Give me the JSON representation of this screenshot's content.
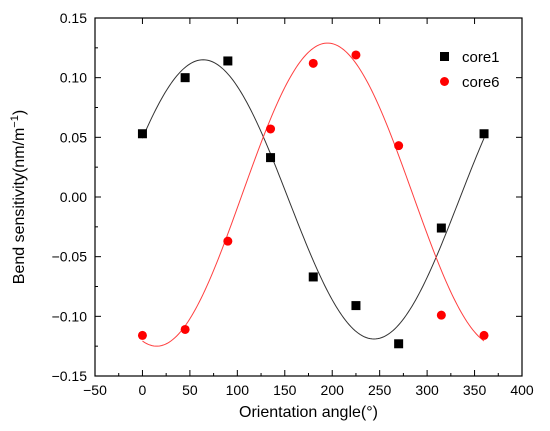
{
  "chart_data": {
    "type": "scatter",
    "xlabel": "Orientation angle(°)",
    "ylabel_main": "Bend sensitivity(nm/m",
    "ylabel_sup": "−1",
    "ylabel_end": ")",
    "xlim": [
      -50,
      400
    ],
    "ylim": [
      -0.15,
      0.15
    ],
    "xticks": [
      -50,
      0,
      50,
      100,
      150,
      200,
      250,
      300,
      350,
      400
    ],
    "xtick_labels": [
      "−50",
      "0",
      "50",
      "100",
      "150",
      "200",
      "250",
      "300",
      "350",
      "400"
    ],
    "yticks": [
      -0.15,
      -0.1,
      -0.05,
      0.0,
      0.05,
      0.1,
      0.15
    ],
    "ytick_labels": [
      "−0.15",
      "−0.10",
      "−0.05",
      "0.00",
      "0.05",
      "0.10",
      "0.15"
    ],
    "grid": false,
    "legend_position": "top-right",
    "series": [
      {
        "name": "core1",
        "marker": "square",
        "color": "#000000",
        "line_color": "#333333",
        "x": [
          0,
          45,
          90,
          135,
          180,
          225,
          270,
          315,
          360
        ],
        "y": [
          0.053,
          0.1,
          0.114,
          0.033,
          -0.067,
          -0.091,
          -0.123,
          -0.026,
          0.053
        ],
        "fit": {
          "mean": -0.002,
          "amp": 0.117,
          "phase_deg": 64,
          "x_range": [
            0,
            360
          ]
        }
      },
      {
        "name": "core6",
        "marker": "circle",
        "color": "#ff0000",
        "line_color": "#ff4040",
        "x": [
          0,
          45,
          90,
          135,
          180,
          225,
          270,
          315,
          360
        ],
        "y": [
          -0.116,
          -0.111,
          -0.037,
          0.057,
          0.112,
          0.119,
          0.043,
          -0.099,
          -0.116
        ],
        "fit": {
          "mean": 0.002,
          "amp": 0.127,
          "phase_deg": 195,
          "x_range": [
            0,
            360
          ]
        }
      }
    ]
  }
}
